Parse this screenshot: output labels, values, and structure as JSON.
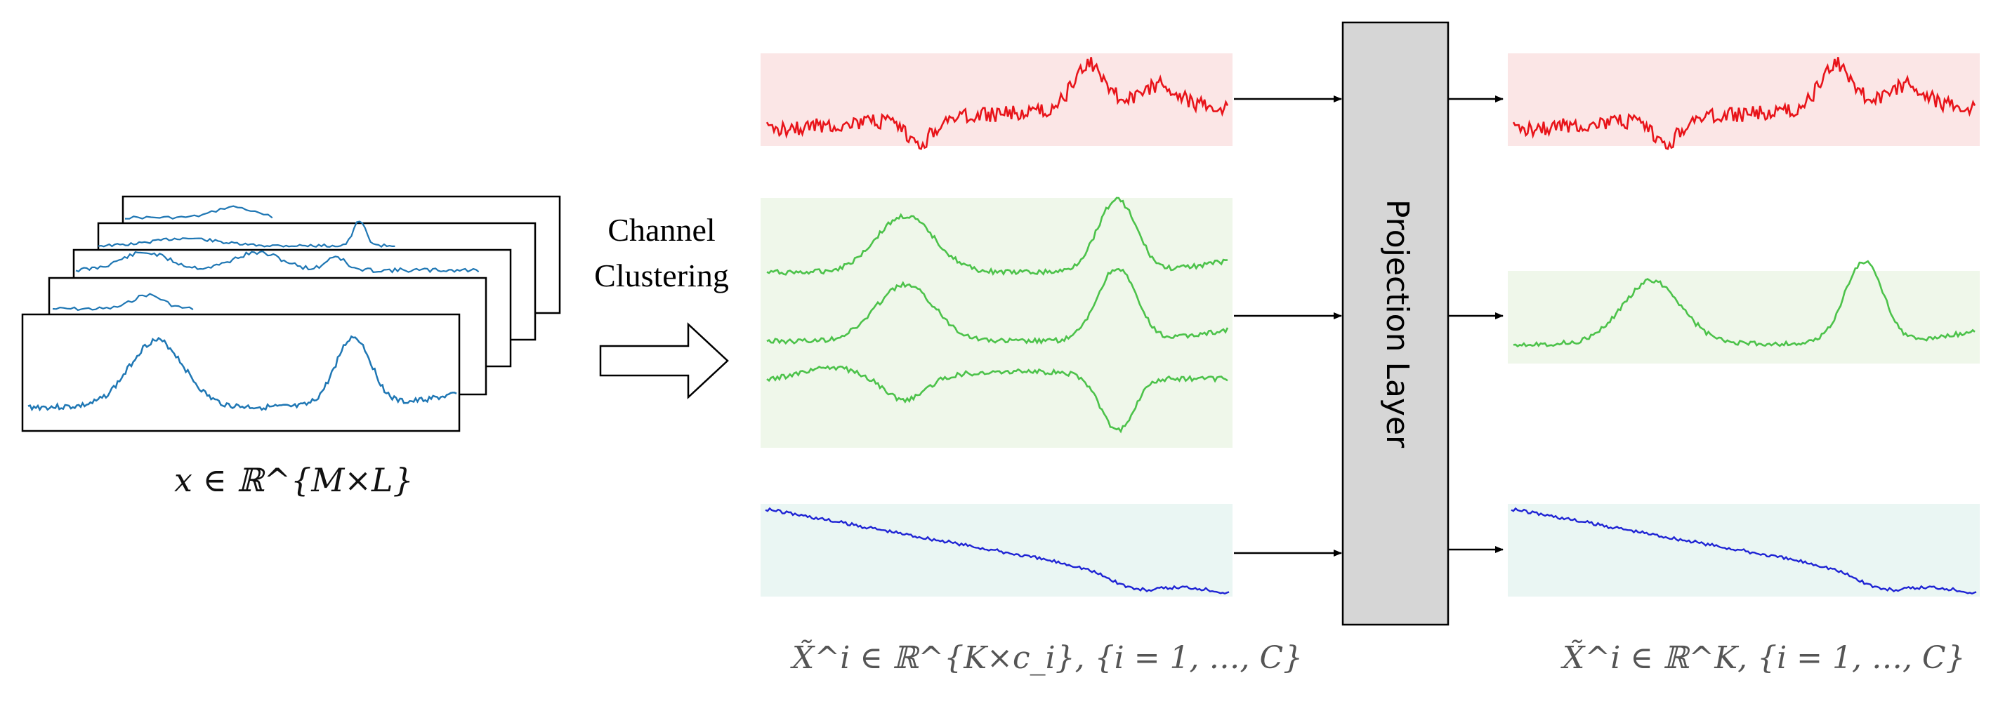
{
  "labels": {
    "input_math": "x ∈ ℝ^{M×L}",
    "clustering_line1": "Channel",
    "clustering_line2": "Clustering",
    "projection": "Projection Layer",
    "clustered_math": "X̃^i ∈ ℝ^{K×c_i}, {i = 1, …, C}",
    "output_math": "X̃^i ∈ ℝ^K, {i = 1, …, C}"
  },
  "colors": {
    "input_series": "#1f77b4",
    "cluster_red": "#e8141a",
    "cluster_red_bg": "#fbe6e6",
    "cluster_green": "#4cc24a",
    "cluster_green_bg": "#eff7ea",
    "cluster_blue": "#1f24d4",
    "cluster_blue_bg": "#eaf6f3",
    "projection_fill": "#d6d6d6",
    "outline": "#000000"
  }
}
